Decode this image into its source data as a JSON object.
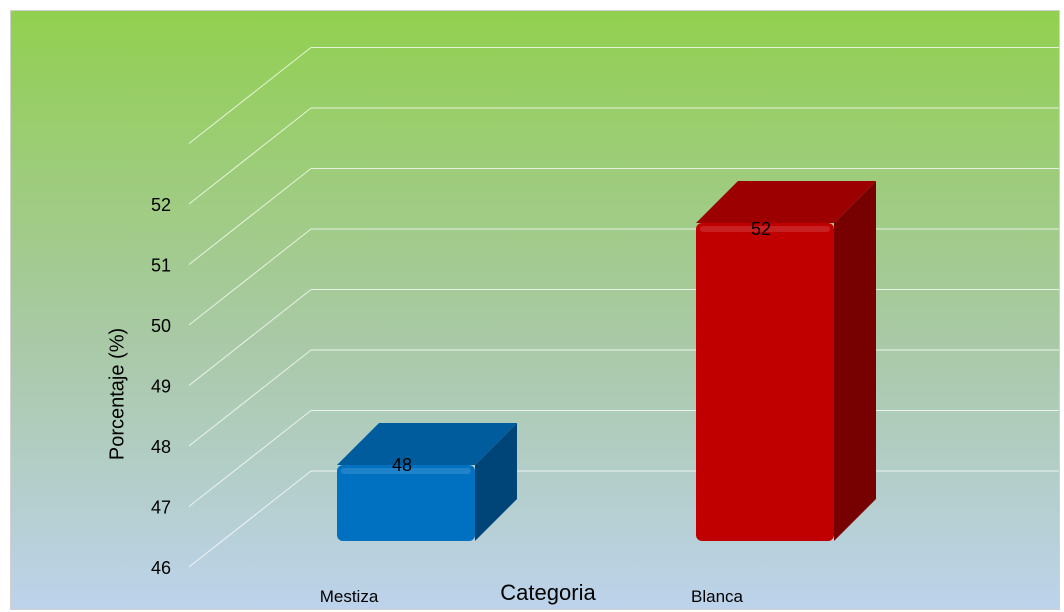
{
  "chart_data": {
    "type": "bar",
    "title": "",
    "xlabel": "Categoria",
    "ylabel": "Porcentaje (%)",
    "categories": [
      "Mestiza",
      "Blanca"
    ],
    "values": [
      48,
      52
    ],
    "ylim": [
      46,
      52
    ],
    "y_ticks": [
      "46",
      "47",
      "48",
      "49",
      "50",
      "51",
      "52"
    ],
    "data_labels": [
      "48",
      "52"
    ],
    "grid": true,
    "legend": "none",
    "is_3d": true,
    "colors": {
      "bars": [
        "#0070c0",
        "#c00000"
      ],
      "background_top": "#92d050",
      "background_bottom": "#bdd3ec"
    }
  }
}
